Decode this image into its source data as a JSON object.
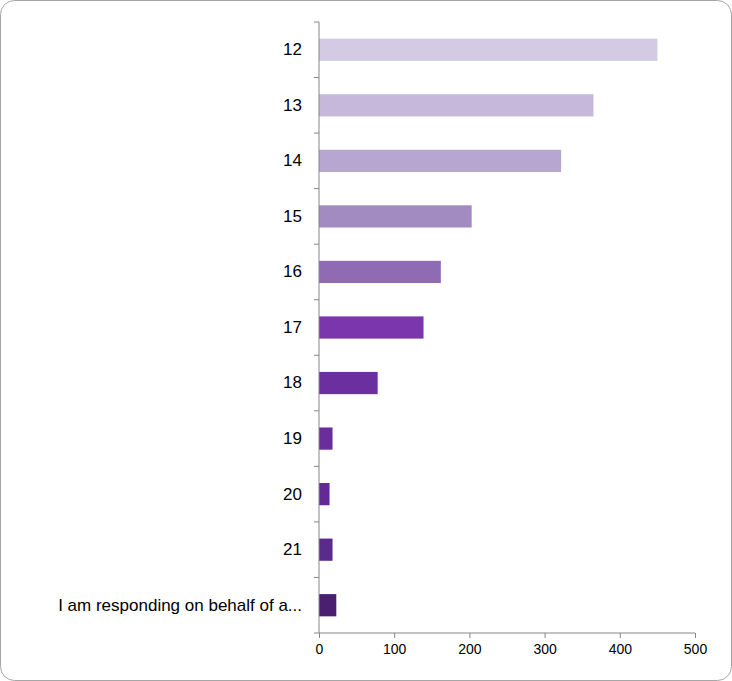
{
  "chart_data": {
    "type": "bar",
    "orientation": "horizontal",
    "categories": [
      "12",
      "13",
      "14",
      "15",
      "16",
      "17",
      "18",
      "19",
      "20",
      "21",
      "I am responding on behalf of a..."
    ],
    "values": [
      450,
      365,
      322,
      203,
      162,
      139,
      78,
      18,
      14,
      18,
      23
    ],
    "colors": [
      "#d3cbe3",
      "#c5b8da",
      "#b6a6d0",
      "#a28bc0",
      "#8e6bb3",
      "#7a36ad",
      "#6c2f9f",
      "#692e9c",
      "#632a96",
      "#5a2a8c",
      "#4a1f70"
    ],
    "xlim": [
      0,
      500
    ],
    "xticks": [
      0,
      100,
      200,
      300,
      400,
      500
    ],
    "grid": false
  }
}
